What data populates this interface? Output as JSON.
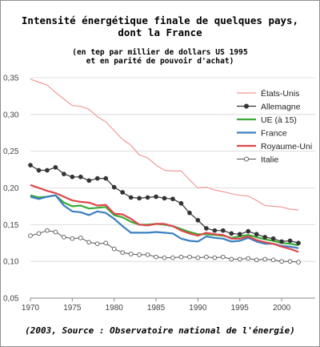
{
  "title_lines": [
    "Intensité énergétique finale de quelques pays,",
    "dont la France"
  ],
  "subtitle_lines": [
    "(en tep par millier de dollars US 1995",
    "et en parité de pouvoir d'achat)"
  ],
  "source": "(2003, Source : Observatoire national de l'énergie)",
  "chart_data": {
    "type": "line",
    "title": "Intensité énergétique finale de quelques pays, dont la France",
    "subtitle": "(en tep par millier de dollars US 1995 et en parité de pouvoir d'achat)",
    "xlabel": "",
    "ylabel": "",
    "xlim": [
      1970,
      2004
    ],
    "ylim": [
      0.05,
      0.35
    ],
    "x_ticks": [
      1970,
      1975,
      1980,
      1985,
      1990,
      1995,
      2000
    ],
    "y_ticks": [
      0.05,
      0.1,
      0.15,
      0.2,
      0.25,
      0.3,
      0.35
    ],
    "y_tick_labels": [
      "0,05",
      "0,10",
      "0,15",
      "0,20",
      "0,25",
      "0,30",
      "0,35"
    ],
    "grid": "horizontal",
    "legend_position": "top-right",
    "x": [
      1970,
      1971,
      1972,
      1973,
      1974,
      1975,
      1976,
      1977,
      1978,
      1979,
      1980,
      1981,
      1982,
      1983,
      1984,
      1985,
      1986,
      1987,
      1988,
      1989,
      1990,
      1991,
      1992,
      1993,
      1994,
      1995,
      1996,
      1997,
      1998,
      1999,
      2000,
      2001,
      2002
    ],
    "series": [
      {
        "name": "États-Unis",
        "color": "#f09a9a",
        "marker": "none",
        "width": 1.2,
        "values": [
          0.348,
          0.344,
          0.34,
          0.33,
          0.321,
          0.312,
          0.311,
          0.307,
          0.297,
          0.29,
          0.278,
          0.266,
          0.258,
          0.245,
          0.241,
          0.231,
          0.224,
          0.223,
          0.223,
          0.211,
          0.2,
          0.201,
          0.197,
          0.195,
          0.192,
          0.19,
          0.189,
          0.183,
          0.176,
          0.175,
          0.174,
          0.171,
          0.17
        ]
      },
      {
        "name": "Allemagne",
        "color": "#333333",
        "marker": "filled",
        "width": 1.2,
        "values": [
          0.231,
          0.224,
          0.224,
          0.228,
          0.219,
          0.215,
          0.215,
          0.21,
          0.213,
          0.213,
          0.201,
          0.194,
          0.187,
          0.186,
          0.187,
          0.188,
          0.186,
          0.185,
          0.179,
          0.166,
          0.156,
          0.145,
          0.142,
          0.142,
          0.138,
          0.137,
          0.141,
          0.137,
          0.133,
          0.131,
          0.127,
          0.128,
          0.125
        ]
      },
      {
        "name": "UE (à 15)",
        "color": "#3aaa35",
        "marker": "none",
        "width": 2.2,
        "values": [
          0.19,
          0.187,
          0.188,
          0.19,
          0.18,
          0.175,
          0.176,
          0.172,
          0.173,
          0.174,
          0.163,
          0.16,
          0.154,
          0.15,
          0.15,
          0.151,
          0.15,
          0.148,
          0.144,
          0.14,
          0.137,
          0.137,
          0.136,
          0.135,
          0.132,
          0.134,
          0.136,
          0.133,
          0.13,
          0.128,
          0.125,
          0.124,
          0.122
        ]
      },
      {
        "name": "France",
        "color": "#3a7fc1",
        "marker": "none",
        "width": 2.2,
        "values": [
          0.188,
          0.185,
          0.188,
          0.19,
          0.176,
          0.168,
          0.167,
          0.163,
          0.168,
          0.166,
          0.158,
          0.148,
          0.139,
          0.139,
          0.139,
          0.14,
          0.139,
          0.138,
          0.131,
          0.128,
          0.127,
          0.134,
          0.132,
          0.131,
          0.127,
          0.128,
          0.132,
          0.127,
          0.124,
          0.124,
          0.121,
          0.12,
          0.118
        ]
      },
      {
        "name": "Royaume-Uni",
        "color": "#e0464b",
        "marker": "none",
        "width": 2.2,
        "values": [
          0.204,
          0.2,
          0.196,
          0.193,
          0.188,
          0.183,
          0.181,
          0.18,
          0.176,
          0.177,
          0.165,
          0.164,
          0.158,
          0.15,
          0.149,
          0.151,
          0.151,
          0.148,
          0.142,
          0.138,
          0.135,
          0.139,
          0.137,
          0.136,
          0.131,
          0.131,
          0.134,
          0.129,
          0.126,
          0.124,
          0.12,
          0.117,
          0.113
        ]
      },
      {
        "name": "Italie",
        "color": "#555555",
        "marker": "open",
        "width": 1.0,
        "values": [
          0.135,
          0.138,
          0.142,
          0.14,
          0.133,
          0.131,
          0.132,
          0.126,
          0.124,
          0.125,
          0.117,
          0.112,
          0.11,
          0.109,
          0.109,
          0.106,
          0.105,
          0.105,
          0.106,
          0.106,
          0.105,
          0.106,
          0.105,
          0.106,
          0.103,
          0.103,
          0.104,
          0.102,
          0.103,
          0.102,
          0.1,
          0.1,
          0.099
        ]
      }
    ]
  }
}
